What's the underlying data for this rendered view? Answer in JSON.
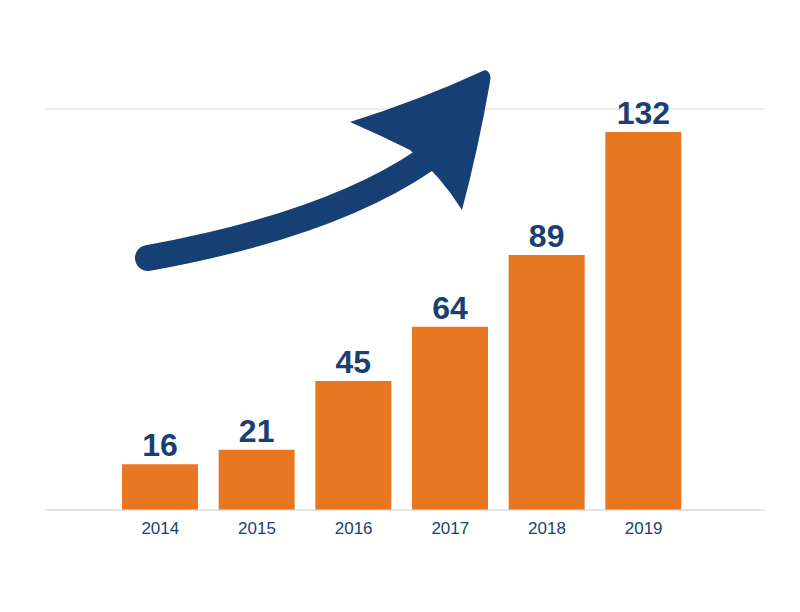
{
  "chart_data": {
    "type": "bar",
    "categories": [
      "2014",
      "2015",
      "2016",
      "2017",
      "2018",
      "2019"
    ],
    "values": [
      16,
      21,
      45,
      64,
      89,
      132
    ],
    "color": "#e87722",
    "ylim": [
      0,
      140
    ],
    "yticks": [
      0,
      20,
      40,
      60,
      80,
      100,
      120,
      140
    ],
    "grid": true,
    "data_labels": true,
    "tick_labels": "x"
  }
}
